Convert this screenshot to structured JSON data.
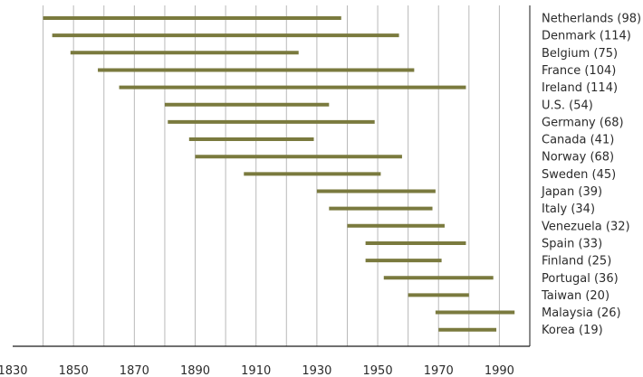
{
  "chart_data": {
    "type": "range-bar",
    "title": "",
    "xlabel": "",
    "ylabel": "",
    "xlim": [
      1830,
      2000
    ],
    "x_ticks": [
      "1830",
      "1850",
      "1870",
      "1890",
      "1910",
      "1930",
      "1950",
      "1970",
      "1990"
    ],
    "grid": "vertical",
    "bar_color": "#7a7a3e",
    "series": [
      {
        "label": "Netherlands (98)",
        "start": 1840,
        "end": 1938
      },
      {
        "label": "Denmark (114)",
        "start": 1843,
        "end": 1957
      },
      {
        "label": "Belgium (75)",
        "start": 1849,
        "end": 1924
      },
      {
        "label": "France (104)",
        "start": 1858,
        "end": 1962
      },
      {
        "label": "Ireland (114)",
        "start": 1865,
        "end": 1979
      },
      {
        "label": "U.S. (54)",
        "start": 1880,
        "end": 1934
      },
      {
        "label": "Germany (68)",
        "start": 1881,
        "end": 1949
      },
      {
        "label": "Canada (41)",
        "start": 1888,
        "end": 1929
      },
      {
        "label": "Norway (68)",
        "start": 1890,
        "end": 1958
      },
      {
        "label": "Sweden (45)",
        "start": 1906,
        "end": 1951
      },
      {
        "label": "Japan (39)",
        "start": 1930,
        "end": 1969
      },
      {
        "label": "Italy (34)",
        "start": 1934,
        "end": 1968
      },
      {
        "label": "Venezuela (32)",
        "start": 1940,
        "end": 1972
      },
      {
        "label": "Spain (33)",
        "start": 1946,
        "end": 1979
      },
      {
        "label": "Finland (25)",
        "start": 1946,
        "end": 1971
      },
      {
        "label": "Portugal (36)",
        "start": 1952,
        "end": 1988
      },
      {
        "label": "Taiwan (20)",
        "start": 1960,
        "end": 1980
      },
      {
        "label": "Malaysia (26)",
        "start": 1969,
        "end": 1995
      },
      {
        "label": "Korea (19)",
        "start": 1970,
        "end": 1989
      }
    ]
  }
}
